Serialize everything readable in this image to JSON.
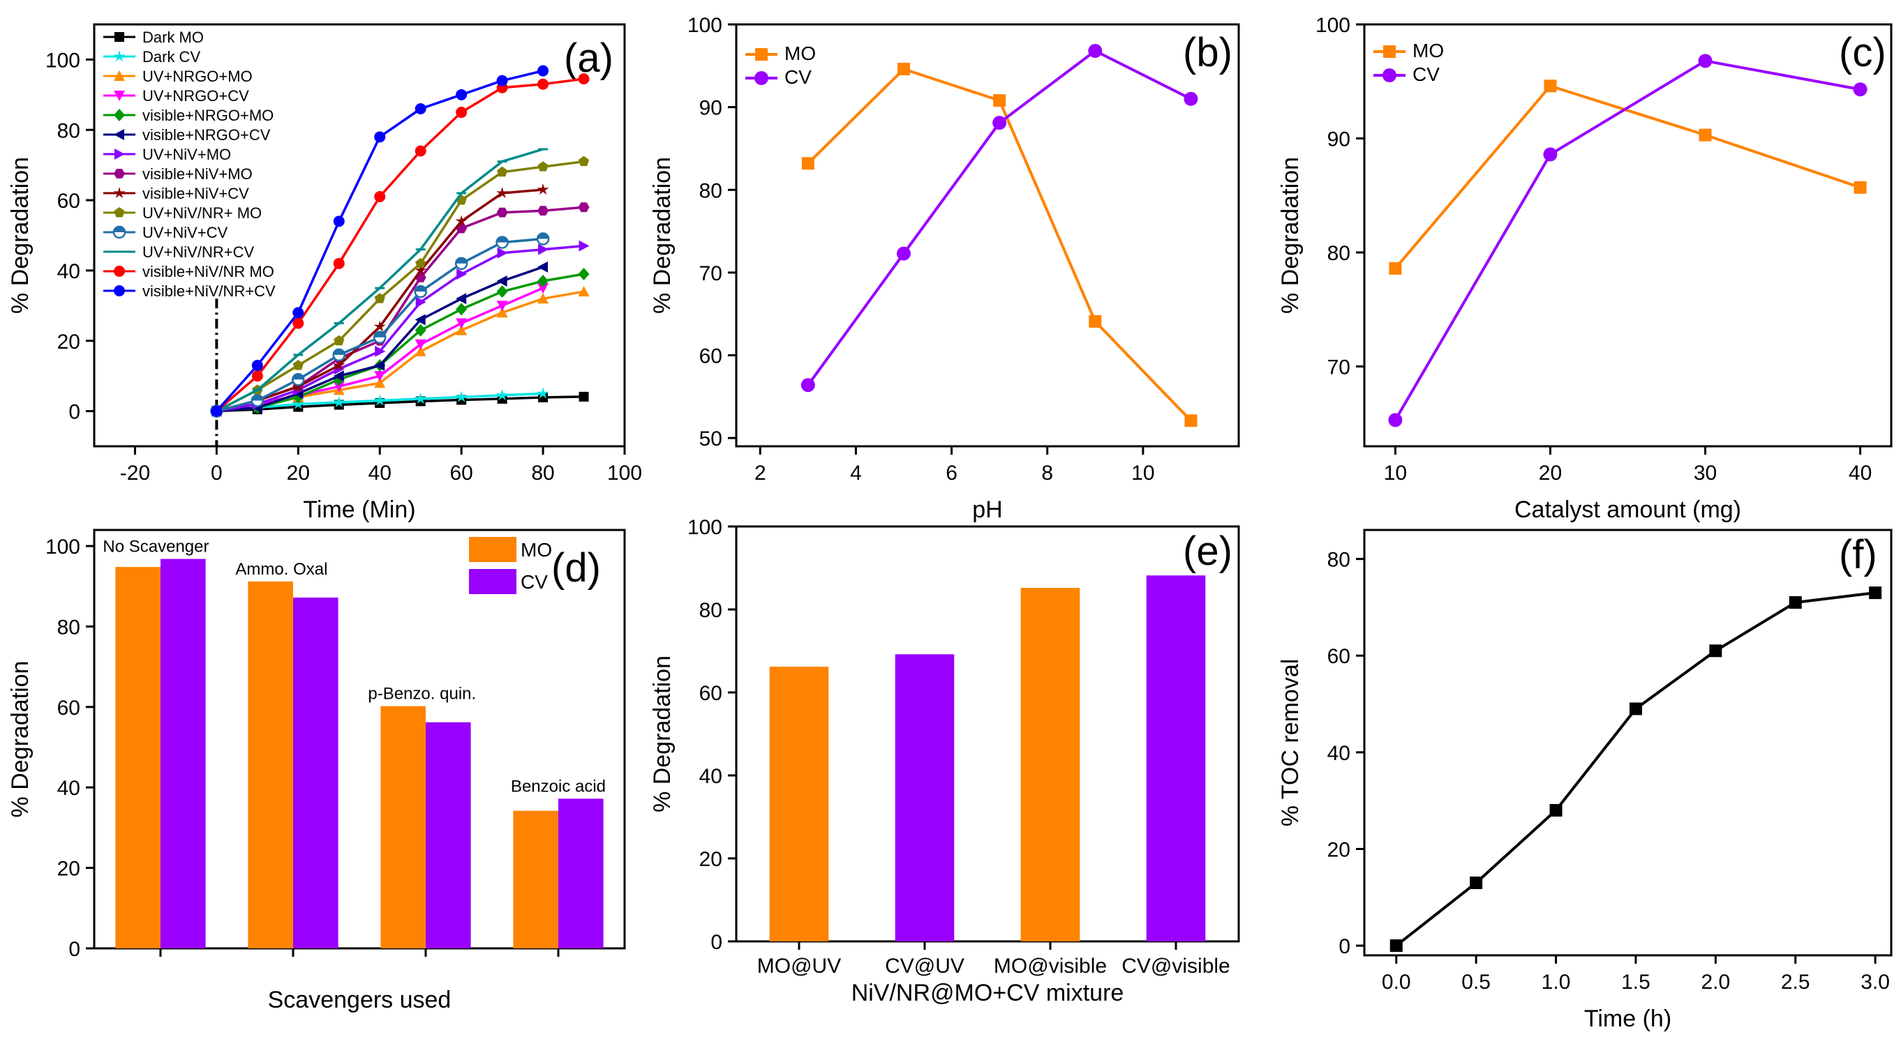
{
  "figure": {
    "colors": {
      "MO": "#FF8200",
      "CV": "#9900FF",
      "axis": "#000000"
    }
  },
  "chart_data": [
    {
      "id": "a",
      "type": "line",
      "panel_label": "(a)",
      "xlabel": "Time (Min)",
      "ylabel": "% Degradation",
      "xlim": [
        -30,
        100
      ],
      "ylim": [
        -10,
        110
      ],
      "xticks": [
        -20,
        0,
        20,
        40,
        60,
        80,
        100
      ],
      "yticks": [
        0,
        20,
        40,
        60,
        80,
        100
      ],
      "legend_position": "top-left",
      "annotation": "vertical dash-dot line at x = 0",
      "series": [
        {
          "name": "Dark MO",
          "color": "#000000",
          "marker": "square",
          "x": [
            0,
            10,
            20,
            30,
            40,
            50,
            60,
            70,
            80,
            90
          ],
          "y": [
            0,
            0.5,
            1.2,
            1.8,
            2.3,
            2.8,
            3.2,
            3.5,
            3.9,
            4.1
          ]
        },
        {
          "name": "Dark CV",
          "color": "#00E5E5",
          "marker": "star",
          "x": [
            0,
            10,
            20,
            30,
            40,
            50,
            60,
            70,
            80
          ],
          "y": [
            0,
            1,
            2,
            2.5,
            3,
            3.5,
            4,
            4.5,
            5
          ]
        },
        {
          "name": "UV+NRGO+MO",
          "color": "#FF8C00",
          "marker": "triangle-up",
          "x": [
            0,
            10,
            20,
            30,
            40,
            50,
            60,
            70,
            80,
            90
          ],
          "y": [
            0,
            2,
            4,
            6,
            8,
            17,
            23,
            28,
            32,
            34
          ]
        },
        {
          "name": "UV+NRGO+CV",
          "color": "#FF00FF",
          "marker": "triangle-down",
          "x": [
            0,
            10,
            20,
            30,
            40,
            50,
            60,
            70,
            80
          ],
          "y": [
            0,
            2,
            4.5,
            7,
            10,
            19,
            25,
            30,
            35
          ]
        },
        {
          "name": "visible+NRGO+MO",
          "color": "#009900",
          "marker": "diamond",
          "x": [
            0,
            10,
            20,
            30,
            40,
            50,
            60,
            70,
            80,
            90
          ],
          "y": [
            0,
            1,
            4,
            9,
            13,
            23,
            29,
            34,
            37,
            39
          ]
        },
        {
          "name": "visible+NRGO+CV",
          "color": "#000080",
          "marker": "triangle-left",
          "x": [
            0,
            10,
            20,
            30,
            40,
            50,
            60,
            70,
            80
          ],
          "y": [
            0,
            1,
            5,
            10,
            13,
            26,
            32,
            37,
            41
          ]
        },
        {
          "name": "UV+NiV+MO",
          "color": "#8A00FF",
          "marker": "triangle-right",
          "x": [
            0,
            10,
            20,
            30,
            40,
            50,
            60,
            70,
            80,
            90
          ],
          "y": [
            0,
            2,
            6,
            12,
            17,
            31,
            39,
            45,
            46,
            47
          ]
        },
        {
          "name": "visible+NiV+MO",
          "color": "#99008A",
          "marker": "hexagon",
          "x": [
            0,
            10,
            20,
            30,
            40,
            50,
            60,
            70,
            80,
            90
          ],
          "y": [
            0,
            3,
            7,
            15,
            20,
            38,
            52,
            56.5,
            57,
            58
          ]
        },
        {
          "name": "visible+NiV+CV",
          "color": "#8B0000",
          "marker": "star",
          "x": [
            0,
            10,
            20,
            30,
            40,
            50,
            60,
            70,
            80
          ],
          "y": [
            0,
            3,
            7,
            13,
            24,
            40,
            54,
            62,
            63
          ]
        },
        {
          "name": "UV+NiV/NR+ MO",
          "color": "#808000",
          "marker": "pentagon",
          "x": [
            0,
            10,
            20,
            30,
            40,
            50,
            60,
            70,
            80,
            90
          ],
          "y": [
            0,
            6,
            13,
            20,
            32,
            42,
            60,
            68,
            69.5,
            71
          ]
        },
        {
          "name": "UV+NiV+CV",
          "color": "#1F6FA8",
          "marker": "half-circle",
          "x": [
            0,
            10,
            20,
            30,
            40,
            50,
            60,
            70,
            80
          ],
          "y": [
            0,
            3,
            9,
            16,
            21,
            34,
            42,
            48,
            49
          ]
        },
        {
          "name": "UV+NiV/NR+CV",
          "color": "#008B8B",
          "marker": "dash",
          "x": [
            0,
            10,
            20,
            30,
            40,
            50,
            60,
            70,
            80
          ],
          "y": [
            0,
            6,
            16,
            25,
            35,
            46,
            62,
            71,
            74.5
          ]
        },
        {
          "name": "visible+NiV/NR MO",
          "color": "#FF0000",
          "marker": "circle",
          "x": [
            0,
            10,
            20,
            30,
            40,
            50,
            60,
            70,
            80,
            90
          ],
          "y": [
            0,
            10,
            25,
            42,
            61,
            74,
            85,
            92,
            93,
            94.5
          ]
        },
        {
          "name": "visible+NiV/NR+CV",
          "color": "#0000FF",
          "marker": "circle",
          "x": [
            0,
            10,
            20,
            30,
            40,
            50,
            60,
            70,
            80
          ],
          "y": [
            0,
            13,
            28,
            54,
            78,
            86,
            90,
            94,
            96.8
          ]
        }
      ]
    },
    {
      "id": "b",
      "type": "line",
      "panel_label": "(b)",
      "xlabel": "pH",
      "ylabel": "% Degradation",
      "xlim": [
        1.5,
        12
      ],
      "ylim": [
        49,
        100
      ],
      "xticks": [
        2,
        4,
        6,
        8,
        10
      ],
      "yticks": [
        50,
        60,
        70,
        80,
        90,
        100
      ],
      "legend_position": "top-left",
      "series": [
        {
          "name": "MO",
          "color": "#FF8200",
          "marker": "square",
          "x": [
            3,
            5,
            7,
            9,
            11
          ],
          "y": [
            83.2,
            94.6,
            90.8,
            64.1,
            52.1
          ]
        },
        {
          "name": "CV",
          "color": "#9900FF",
          "marker": "circle",
          "x": [
            3,
            5,
            7,
            9,
            11
          ],
          "y": [
            56.4,
            72.3,
            88.1,
            96.8,
            91.0
          ]
        }
      ]
    },
    {
      "id": "c",
      "type": "line",
      "panel_label": "(c)",
      "xlabel": "Catalyst amount (mg)",
      "ylabel": "% Degradation",
      "xlim": [
        8,
        42
      ],
      "ylim": [
        63,
        100
      ],
      "xticks": [
        10,
        20,
        30,
        40
      ],
      "yticks": [
        70,
        80,
        90,
        100
      ],
      "legend_position": "top-left",
      "series": [
        {
          "name": "MO",
          "color": "#FF8200",
          "marker": "square",
          "x": [
            10,
            20,
            30,
            40
          ],
          "y": [
            78.6,
            94.6,
            90.3,
            85.7
          ]
        },
        {
          "name": "CV",
          "color": "#9900FF",
          "marker": "circle",
          "x": [
            10,
            20,
            30,
            40
          ],
          "y": [
            65.3,
            88.6,
            96.8,
            94.3
          ]
        }
      ]
    },
    {
      "id": "d",
      "type": "bar",
      "panel_label": "(d)",
      "xlabel": "Scavengers used",
      "ylabel": "% Degradation",
      "ylim": [
        0,
        104
      ],
      "yticks": [
        0,
        20,
        40,
        60,
        80,
        100
      ],
      "legend_position": "top-right",
      "categories": [
        "No Scavenger",
        "Ammo. Oxal",
        "p-Benzo. quin.",
        "Benzoic acid"
      ],
      "series": [
        {
          "name": "MO",
          "color": "#FF8200",
          "values": [
            94.8,
            91.2,
            60.2,
            34.2
          ]
        },
        {
          "name": "CV",
          "color": "#9900FF",
          "values": [
            96.8,
            87.2,
            56.2,
            37.2
          ]
        }
      ]
    },
    {
      "id": "e",
      "type": "bar",
      "panel_label": "(e)",
      "xlabel": "NiV/NR@MO+CV mixture",
      "ylabel": "% Degradation",
      "ylim": [
        0,
        100
      ],
      "yticks": [
        0,
        20,
        40,
        60,
        80,
        100
      ],
      "categories": [
        "MO@UV",
        "CV@UV",
        "MO@visible",
        "CV@visible"
      ],
      "values": [
        66.2,
        69.2,
        85.2,
        88.2
      ],
      "bar_colors": [
        "#FF8200",
        "#9900FF",
        "#FF8200",
        "#9900FF"
      ]
    },
    {
      "id": "f",
      "type": "line",
      "panel_label": "(f)",
      "xlabel": "Time (h)",
      "ylabel": "% TOC removal",
      "xlim": [
        -0.2,
        3.1
      ],
      "ylim": [
        -2,
        86
      ],
      "xticks": [
        0.0,
        0.5,
        1.0,
        1.5,
        2.0,
        2.5,
        3.0
      ],
      "xtick_labels": [
        "0.0",
        "0.5",
        "1.0",
        "1.5",
        "2.0",
        "2.5",
        "3.0"
      ],
      "yticks": [
        0,
        20,
        40,
        60,
        80
      ],
      "series": [
        {
          "name": "TOC",
          "color": "#000000",
          "marker": "square",
          "x": [
            0,
            0.5,
            1.0,
            1.5,
            2.0,
            2.5,
            3.0
          ],
          "y": [
            0,
            13,
            28,
            49,
            61,
            71,
            73
          ]
        }
      ]
    }
  ]
}
